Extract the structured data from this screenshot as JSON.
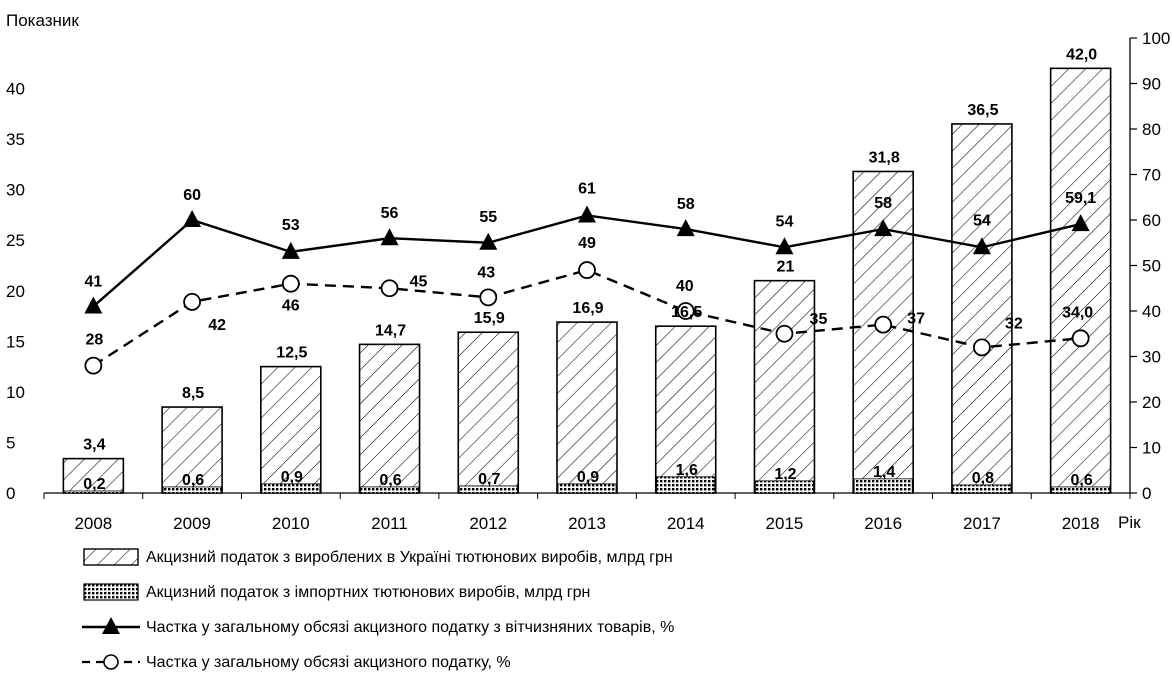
{
  "chart_data": {
    "type": "bar",
    "ylabel": "Показник",
    "xlabel": "Рік",
    "categories": [
      "2008",
      "2009",
      "2010",
      "2011",
      "2012",
      "2013",
      "2014",
      "2015",
      "2016",
      "2017",
      "2018"
    ],
    "left_axis": {
      "ylim": [
        0,
        45
      ],
      "ticks": [
        0,
        5,
        10,
        15,
        20,
        25,
        30,
        35,
        40
      ]
    },
    "right_axis": {
      "ylim": [
        0,
        100
      ],
      "ticks": [
        0,
        10,
        20,
        30,
        40,
        50,
        60,
        70,
        80,
        90,
        100
      ]
    },
    "grid": false,
    "legend_placement": "bottom",
    "series": [
      {
        "name": "Акцизний податок з вироблених в Україні тютюнових виробів, млрд грн",
        "kind": "bar-hatched",
        "axis": "left",
        "values": [
          3.4,
          8.5,
          12.5,
          14.7,
          15.9,
          16.9,
          16.5,
          21,
          31.8,
          36.5,
          42.0
        ],
        "labels": [
          "3,4",
          "8,5",
          "12,5",
          "14,7",
          "15,9",
          "16,9",
          "16,5",
          "21",
          "31,8",
          "36,5",
          "42,0"
        ]
      },
      {
        "name": "Акцизний податок з імпортних тютюнових виробів, млрд грн",
        "kind": "bar-checkered",
        "axis": "left",
        "values": [
          0.2,
          0.6,
          0.9,
          0.6,
          0.7,
          0.9,
          1.6,
          1.2,
          1.4,
          0.8,
          0.6
        ],
        "labels": [
          "0,2",
          "0,6",
          "0,9",
          "0,6",
          "0,7",
          "0,9",
          "1,6",
          "1,2",
          "1,4",
          "0,8",
          "0,6"
        ]
      },
      {
        "name": "Частка у загальному обсязі акцизного податку з вітчизняних товарів, %",
        "kind": "line-triangle",
        "axis": "right",
        "values": [
          41,
          60,
          53,
          56,
          55,
          61,
          58,
          54,
          58,
          54,
          59.1
        ],
        "labels": [
          "41",
          "60",
          "53",
          "56",
          "55",
          "61",
          "58",
          "54",
          "58",
          "54",
          "59,1"
        ]
      },
      {
        "name": "Частка у загальному обсязі акцизного податку, %",
        "kind": "line-circle-dashed",
        "axis": "right",
        "values": [
          28,
          42,
          46,
          45,
          43,
          49,
          40,
          35,
          37,
          32,
          34.0
        ],
        "labels": [
          "28",
          "42",
          "46",
          "45",
          "43",
          "49",
          "40",
          "35",
          "37",
          "32",
          "34,0"
        ]
      }
    ]
  }
}
